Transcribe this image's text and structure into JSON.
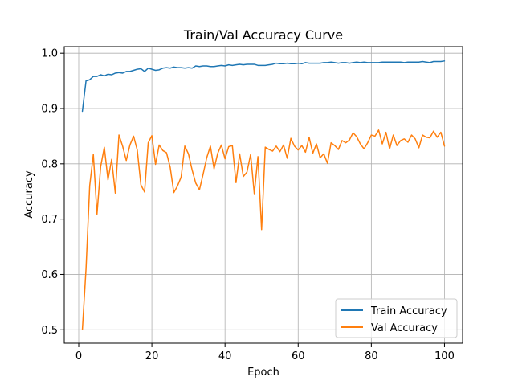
{
  "chart_data": {
    "type": "line",
    "title": "Train/Val Accuracy Curve",
    "xlabel": "Epoch",
    "ylabel": "Accuracy",
    "xlim": [
      -3.95,
      104.95
    ],
    "ylim": [
      0.4757,
      1.0119
    ],
    "xticks": [
      0,
      20,
      40,
      60,
      80,
      100
    ],
    "yticks": [
      0.5,
      0.6,
      0.7,
      0.8,
      0.9,
      1.0
    ],
    "xtick_labels": [
      "0",
      "20",
      "40",
      "60",
      "80",
      "100"
    ],
    "ytick_labels": [
      "0.5",
      "0.6",
      "0.7",
      "0.8",
      "0.9",
      "1.0"
    ],
    "grid": true,
    "legend_position": "lower-right",
    "series": [
      {
        "name": "Train Accuracy",
        "color": "#1f77b4",
        "x": [
          1,
          2,
          3,
          4,
          5,
          6,
          7,
          8,
          9,
          10,
          11,
          12,
          13,
          14,
          15,
          16,
          17,
          18,
          19,
          20,
          21,
          22,
          23,
          24,
          25,
          26,
          27,
          28,
          29,
          30,
          31,
          32,
          33,
          34,
          35,
          36,
          37,
          38,
          39,
          40,
          41,
          42,
          43,
          44,
          45,
          46,
          47,
          48,
          49,
          50,
          51,
          52,
          53,
          54,
          55,
          56,
          57,
          58,
          59,
          60,
          61,
          62,
          63,
          64,
          65,
          66,
          67,
          68,
          69,
          70,
          71,
          72,
          73,
          74,
          75,
          76,
          77,
          78,
          79,
          80,
          81,
          82,
          83,
          84,
          85,
          86,
          87,
          88,
          89,
          90,
          91,
          92,
          93,
          94,
          95,
          96,
          97,
          98,
          99,
          100
        ],
        "values": [
          0.895,
          0.95,
          0.952,
          0.958,
          0.958,
          0.961,
          0.959,
          0.962,
          0.961,
          0.964,
          0.965,
          0.964,
          0.967,
          0.967,
          0.969,
          0.971,
          0.972,
          0.967,
          0.973,
          0.971,
          0.969,
          0.97,
          0.973,
          0.974,
          0.973,
          0.975,
          0.974,
          0.974,
          0.973,
          0.974,
          0.973,
          0.977,
          0.976,
          0.977,
          0.977,
          0.976,
          0.976,
          0.977,
          0.978,
          0.977,
          0.979,
          0.978,
          0.979,
          0.98,
          0.979,
          0.98,
          0.98,
          0.98,
          0.978,
          0.978,
          0.978,
          0.979,
          0.98,
          0.982,
          0.981,
          0.981,
          0.982,
          0.981,
          0.981,
          0.982,
          0.981,
          0.983,
          0.982,
          0.982,
          0.982,
          0.982,
          0.983,
          0.983,
          0.984,
          0.983,
          0.982,
          0.983,
          0.983,
          0.982,
          0.983,
          0.984,
          0.983,
          0.984,
          0.983,
          0.983,
          0.983,
          0.983,
          0.984,
          0.984,
          0.984,
          0.984,
          0.984,
          0.984,
          0.983,
          0.984,
          0.984,
          0.984,
          0.984,
          0.985,
          0.984,
          0.983,
          0.985,
          0.985,
          0.985,
          0.986
        ]
      },
      {
        "name": "Val Accuracy",
        "color": "#ff7f0e",
        "x": [
          1,
          2,
          3,
          4,
          5,
          6,
          7,
          8,
          9,
          10,
          11,
          12,
          13,
          14,
          15,
          16,
          17,
          18,
          19,
          20,
          21,
          22,
          23,
          24,
          25,
          26,
          27,
          28,
          29,
          30,
          31,
          32,
          33,
          34,
          35,
          36,
          37,
          38,
          39,
          40,
          41,
          42,
          43,
          44,
          45,
          46,
          47,
          48,
          49,
          50,
          51,
          52,
          53,
          54,
          55,
          56,
          57,
          58,
          59,
          60,
          61,
          62,
          63,
          64,
          65,
          66,
          67,
          68,
          69,
          70,
          71,
          72,
          73,
          74,
          75,
          76,
          77,
          78,
          79,
          80,
          81,
          82,
          83,
          84,
          85,
          86,
          87,
          88,
          89,
          90,
          91,
          92,
          93,
          94,
          95,
          96,
          97,
          98,
          99,
          100
        ],
        "values": [
          0.5,
          0.61,
          0.76,
          0.817,
          0.709,
          0.795,
          0.83,
          0.771,
          0.808,
          0.747,
          0.852,
          0.832,
          0.806,
          0.834,
          0.85,
          0.825,
          0.762,
          0.749,
          0.838,
          0.851,
          0.799,
          0.834,
          0.824,
          0.82,
          0.794,
          0.748,
          0.76,
          0.776,
          0.832,
          0.818,
          0.789,
          0.765,
          0.753,
          0.781,
          0.811,
          0.832,
          0.791,
          0.819,
          0.834,
          0.809,
          0.831,
          0.833,
          0.766,
          0.818,
          0.777,
          0.785,
          0.817,
          0.746,
          0.813,
          0.681,
          0.83,
          0.826,
          0.823,
          0.832,
          0.822,
          0.834,
          0.81,
          0.846,
          0.832,
          0.825,
          0.833,
          0.821,
          0.848,
          0.819,
          0.836,
          0.811,
          0.818,
          0.801,
          0.838,
          0.833,
          0.826,
          0.842,
          0.838,
          0.843,
          0.856,
          0.849,
          0.836,
          0.827,
          0.838,
          0.852,
          0.85,
          0.861,
          0.836,
          0.857,
          0.827,
          0.852,
          0.833,
          0.842,
          0.845,
          0.839,
          0.852,
          0.845,
          0.829,
          0.852,
          0.848,
          0.847,
          0.859,
          0.848,
          0.857,
          0.832
        ]
      }
    ]
  }
}
